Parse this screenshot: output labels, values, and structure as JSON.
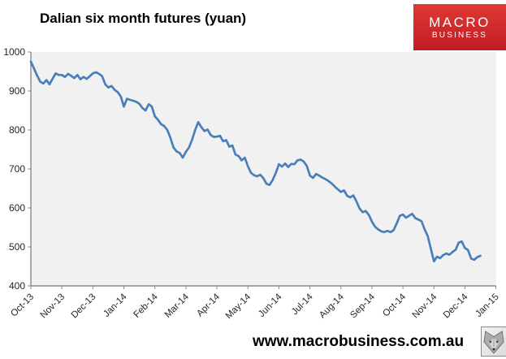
{
  "header": {
    "title": "Dalian six month futures (yuan)"
  },
  "logo": {
    "line1": "MACRO",
    "line2": "BUSINESS",
    "bg_color": "#cf2a2b",
    "text_color": "#ffffff"
  },
  "footer": {
    "url": "www.macrobusiness.com.au",
    "icon": "wolf-icon"
  },
  "chart_data": {
    "type": "line",
    "title": "Dalian six month futures (yuan)",
    "xlabel": "",
    "ylabel": "",
    "x_tick_labels": [
      "Oct-13",
      "Nov-13",
      "Dec-13",
      "Jan-14",
      "Feb-14",
      "Mar-14",
      "Apr-14",
      "May-14",
      "Jun-14",
      "Jul-14",
      "Aug-14",
      "Sep-14",
      "Oct-14",
      "Nov-14",
      "Dec-14",
      "Jan-15"
    ],
    "y_ticks": [
      400,
      500,
      600,
      700,
      800,
      900,
      1000
    ],
    "ylim": [
      400,
      1000
    ],
    "xlim_months": [
      0,
      15
    ],
    "grid": false,
    "legend": "none",
    "plot_bg": "#f1f1f1",
    "axis_color": "#8a8a8a",
    "series": [
      {
        "name": "Dalian six month futures (yuan)",
        "color": "#4a7ebb",
        "x_start_month": 0,
        "x_step_months": 0.1,
        "values": [
          975,
          958,
          940,
          924,
          919,
          928,
          917,
          931,
          945,
          941,
          941,
          936,
          944,
          939,
          933,
          941,
          930,
          936,
          931,
          938,
          945,
          948,
          944,
          938,
          917,
          909,
          913,
          903,
          897,
          886,
          860,
          880,
          877,
          875,
          872,
          867,
          856,
          850,
          866,
          860,
          835,
          826,
          815,
          810,
          800,
          780,
          755,
          745,
          741,
          729,
          744,
          755,
          775,
          800,
          820,
          807,
          797,
          801,
          787,
          782,
          783,
          785,
          771,
          774,
          757,
          760,
          737,
          733,
          722,
          729,
          707,
          690,
          684,
          681,
          685,
          676,
          662,
          659,
          672,
          690,
          712,
          706,
          714,
          705,
          713,
          712,
          722,
          724,
          719,
          708,
          683,
          677,
          687,
          683,
          678,
          674,
          669,
          663,
          655,
          648,
          641,
          645,
          631,
          627,
          632,
          617,
          599,
          589,
          592,
          582,
          565,
          552,
          545,
          540,
          538,
          541,
          538,
          543,
          560,
          580,
          583,
          575,
          580,
          585,
          574,
          570,
          566,
          545,
          528,
          496,
          463,
          475,
          471,
          479,
          483,
          480,
          487,
          493,
          511,
          514,
          497,
          492,
          470,
          467,
          474,
          477
        ]
      }
    ]
  }
}
